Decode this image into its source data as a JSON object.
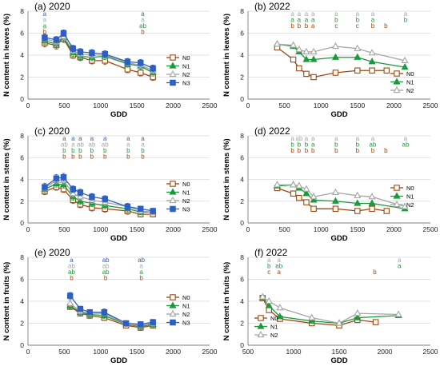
{
  "colors": {
    "N0": "#9e480e",
    "N1": "#1a9a3a",
    "N2": "#a5a5a5",
    "N3": "#2e5fc1"
  },
  "chart_data": [
    {
      "type": "line",
      "panel": "a",
      "title": "(a) 2020",
      "ylabel": "N content in leaves (%)",
      "xlabel": "GDD",
      "xlim": [
        0,
        2500
      ],
      "ylim": [
        0,
        8
      ],
      "xticks": [
        0,
        500,
        1000,
        1500,
        2000,
        2500
      ],
      "yticks": [
        0,
        2,
        4,
        6,
        8
      ],
      "legend": [
        "N0",
        "N1",
        "N2",
        "N3"
      ],
      "series": [
        {
          "name": "N0",
          "marker": "square",
          "x": [
            230,
            390,
            490,
            620,
            720,
            880,
            1060,
            1370,
            1550,
            1720
          ],
          "y": [
            5.1,
            4.9,
            5.5,
            4.0,
            3.8,
            3.5,
            3.5,
            2.7,
            2.4,
            2.0
          ],
          "err": [
            0.35,
            0.35,
            0.35,
            0.3,
            0.3,
            0.3,
            0.35,
            0.3,
            0.3,
            0.3
          ]
        },
        {
          "name": "N1",
          "marker": "triangle",
          "x": [
            230,
            390,
            490,
            620,
            720,
            880,
            1060,
            1370,
            1550,
            1720
          ],
          "y": [
            5.3,
            5.0,
            5.6,
            4.2,
            3.9,
            3.8,
            3.9,
            3.2,
            3.0,
            2.4
          ],
          "err": [
            0.3,
            0.3,
            0.3,
            0.3,
            0.3,
            0.3,
            0.3,
            0.3,
            0.3,
            0.3
          ]
        },
        {
          "name": "N2",
          "marker": "triangle-open",
          "x": [
            230,
            390,
            490,
            620,
            720,
            880,
            1060,
            1370,
            1550,
            1720
          ],
          "y": [
            5.5,
            5.2,
            5.7,
            4.4,
            4.1,
            4.0,
            4.0,
            3.3,
            3.1,
            2.6
          ],
          "err": [
            0.3,
            0.3,
            0.3,
            0.3,
            0.3,
            0.3,
            0.3,
            0.3,
            0.3,
            0.3
          ]
        },
        {
          "name": "N3",
          "marker": "square",
          "x": [
            230,
            390,
            490,
            620,
            720,
            880,
            1060,
            1370,
            1550,
            1720
          ],
          "y": [
            5.6,
            5.4,
            6.0,
            4.6,
            4.3,
            4.2,
            4.1,
            3.4,
            3.3,
            2.8
          ],
          "err": [
            0.3,
            0.3,
            0.3,
            0.3,
            0.3,
            0.3,
            0.3,
            0.3,
            0.3,
            0.3
          ]
        }
      ],
      "annotations": [
        {
          "x": 230,
          "letters": [
            "a",
            "a",
            "a",
            "b"
          ]
        },
        {
          "x": 1580,
          "letters": [
            "a",
            "a",
            "ab",
            "b"
          ]
        }
      ]
    },
    {
      "type": "line",
      "panel": "b",
      "title": "(b) 2022",
      "ylabel": "N content in leaves (%)",
      "xlabel": "GDD",
      "xlim": [
        0,
        2500
      ],
      "ylim": [
        0,
        8
      ],
      "xticks": [
        0,
        500,
        1000,
        1500,
        2000,
        2500
      ],
      "yticks": [
        0,
        2,
        4,
        6,
        8
      ],
      "legend": [
        "N0",
        "N1",
        "N2"
      ],
      "series": [
        {
          "name": "N0",
          "marker": "square",
          "x": [
            400,
            620,
            700,
            800,
            900,
            1200,
            1500,
            1700,
            1900
          ],
          "y": [
            4.7,
            3.6,
            2.8,
            2.3,
            2.0,
            2.4,
            2.6,
            2.6,
            2.6
          ]
        },
        {
          "name": "N1",
          "marker": "triangle",
          "x": [
            400,
            620,
            700,
            800,
            900,
            1200,
            1500,
            1700,
            2150
          ],
          "y": [
            5.0,
            4.8,
            4.3,
            3.6,
            3.6,
            3.8,
            3.8,
            3.4,
            2.9
          ]
        },
        {
          "name": "N2",
          "marker": "triangle-open",
          "x": [
            400,
            620,
            700,
            800,
            900,
            1200,
            1500,
            1700,
            2150
          ],
          "y": [
            5.0,
            4.9,
            4.5,
            4.3,
            4.3,
            4.8,
            4.6,
            4.2,
            3.5
          ]
        }
      ],
      "annotations": [
        {
          "x": 610,
          "letters": [
            "a",
            "a",
            "b"
          ]
        },
        {
          "x": 700,
          "letters": [
            "a",
            "a",
            "b"
          ]
        },
        {
          "x": 800,
          "letters": [
            "a",
            "a",
            "b"
          ]
        },
        {
          "x": 890,
          "letters": [
            "a",
            "a",
            "a"
          ]
        },
        {
          "x": 1210,
          "letters": [
            "a",
            "b",
            "c"
          ]
        },
        {
          "x": 1500,
          "letters": [
            "a",
            "b",
            "c"
          ]
        },
        {
          "x": 1710,
          "letters": [
            "a",
            "a",
            "b"
          ]
        },
        {
          "x": 1890,
          "letters": [
            "",
            "",
            "b"
          ]
        },
        {
          "x": 2160,
          "letters": [
            "a",
            "b",
            ""
          ]
        }
      ]
    },
    {
      "type": "line",
      "panel": "c",
      "title": "(c) 2020",
      "ylabel": "N content in stems (%)",
      "xlabel": "GDD",
      "xlim": [
        0,
        2500
      ],
      "ylim": [
        0,
        8
      ],
      "xticks": [
        0,
        500,
        1000,
        1500,
        2000,
        2500
      ],
      "yticks": [
        0,
        2,
        4,
        6,
        8
      ],
      "legend": [
        "N0",
        "N1",
        "N2",
        "N3"
      ],
      "series": [
        {
          "name": "N0",
          "marker": "square",
          "x": [
            230,
            390,
            490,
            620,
            720,
            880,
            1060,
            1370,
            1550,
            1720
          ],
          "y": [
            2.9,
            3.3,
            3.1,
            2.1,
            1.7,
            1.4,
            1.3,
            1.1,
            0.8,
            0.8
          ],
          "err": [
            0.3,
            0.3,
            0.3,
            0.3,
            0.3,
            0.3,
            0.3,
            0.3,
            0.25,
            0.25
          ]
        },
        {
          "name": "N1",
          "marker": "triangle",
          "x": [
            230,
            390,
            490,
            620,
            720,
            880,
            1060,
            1370,
            1550,
            1720
          ],
          "y": [
            3.1,
            3.6,
            3.5,
            2.4,
            2.0,
            1.8,
            1.6,
            1.3,
            1.0,
            1.0
          ],
          "err": [
            0.3,
            0.3,
            0.3,
            0.3,
            0.3,
            0.3,
            0.3,
            0.3,
            0.25,
            0.25
          ]
        },
        {
          "name": "N2",
          "marker": "triangle-open",
          "x": [
            230,
            390,
            490,
            620,
            720,
            880,
            1060,
            1370,
            1550,
            1720
          ],
          "y": [
            3.2,
            3.9,
            3.9,
            2.7,
            2.4,
            2.1,
            1.9,
            1.5,
            1.1,
            1.0
          ],
          "err": [
            0.3,
            0.3,
            0.3,
            0.3,
            0.3,
            0.3,
            0.3,
            0.3,
            0.25,
            0.25
          ]
        },
        {
          "name": "N3",
          "marker": "square",
          "x": [
            230,
            390,
            490,
            620,
            720,
            880,
            1060,
            1370,
            1550,
            1720
          ],
          "y": [
            3.3,
            4.1,
            4.2,
            3.1,
            2.8,
            2.4,
            2.2,
            1.5,
            1.3,
            1.1
          ],
          "err": [
            0.35,
            0.35,
            0.35,
            0.3,
            0.3,
            0.3,
            0.3,
            0.3,
            0.25,
            0.25
          ]
        }
      ],
      "annotations": [
        {
          "x": 500,
          "letters": [
            "a",
            "ab",
            "b",
            "b"
          ]
        },
        {
          "x": 620,
          "letters": [
            "a",
            "a",
            "b",
            "b"
          ]
        },
        {
          "x": 720,
          "letters": [
            "a",
            "ab",
            "b",
            "b"
          ]
        },
        {
          "x": 880,
          "letters": [
            "a",
            "ab",
            "b",
            "b"
          ]
        },
        {
          "x": 1060,
          "letters": [
            "a",
            "ab",
            "b",
            "b"
          ]
        },
        {
          "x": 1380,
          "letters": [
            "a",
            "a",
            "b",
            "b"
          ]
        },
        {
          "x": 1580,
          "letters": [
            "a",
            "a",
            "b",
            "b"
          ]
        }
      ]
    },
    {
      "type": "line",
      "panel": "d",
      "title": "(d) 2022",
      "ylabel": "N content in stems (%)",
      "xlabel": "GDD",
      "xlim": [
        0,
        2500
      ],
      "ylim": [
        0,
        8
      ],
      "xticks": [
        0,
        500,
        1000,
        1500,
        2000,
        2500
      ],
      "yticks": [
        0,
        2,
        4,
        6,
        8
      ],
      "legend": [
        "N0",
        "N1",
        "N2"
      ],
      "series": [
        {
          "name": "N0",
          "marker": "square",
          "x": [
            400,
            620,
            700,
            800,
            900,
            1200,
            1500,
            1700,
            1900
          ],
          "y": [
            3.2,
            2.7,
            2.3,
            1.9,
            1.3,
            1.3,
            1.1,
            1.3,
            1.1
          ]
        },
        {
          "name": "N1",
          "marker": "triangle",
          "x": [
            400,
            620,
            700,
            800,
            900,
            1200,
            1500,
            1700,
            2150
          ],
          "y": [
            3.4,
            3.5,
            3.2,
            2.7,
            2.1,
            2.0,
            1.8,
            1.8,
            1.3
          ]
        },
        {
          "name": "N2",
          "marker": "triangle-open",
          "x": [
            400,
            620,
            700,
            800,
            900,
            1200,
            1500,
            1700,
            2150
          ],
          "y": [
            3.5,
            3.5,
            3.4,
            3.1,
            2.4,
            2.8,
            2.5,
            2.4,
            1.5
          ]
        }
      ],
      "annotations": [
        {
          "x": 610,
          "letters": [
            "a",
            "b",
            "b"
          ]
        },
        {
          "x": 700,
          "letters": [
            "ab",
            "b",
            "b"
          ]
        },
        {
          "x": 800,
          "letters": [
            "a",
            "b",
            "b"
          ]
        },
        {
          "x": 890,
          "letters": [
            "a",
            "a",
            "b"
          ]
        },
        {
          "x": 1210,
          "letters": [
            "a",
            "b",
            "b"
          ]
        },
        {
          "x": 1500,
          "letters": [
            "a",
            "b",
            "b"
          ]
        },
        {
          "x": 1710,
          "letters": [
            "a",
            "ab",
            "b"
          ]
        },
        {
          "x": 1890,
          "letters": [
            "",
            "",
            "b"
          ]
        },
        {
          "x": 2160,
          "letters": [
            "a",
            "ab",
            ""
          ]
        }
      ]
    },
    {
      "type": "line",
      "panel": "e",
      "title": "(e) 2020",
      "ylabel": "N content in fruits (%)",
      "xlabel": "GDD",
      "xlim": [
        0,
        2500
      ],
      "ylim": [
        0,
        8
      ],
      "xticks": [
        0,
        500,
        1000,
        1500,
        2000,
        2500
      ],
      "yticks": [
        0,
        2,
        4,
        6,
        8
      ],
      "legend": [
        "N0",
        "N1",
        "N2",
        "N3"
      ],
      "series": [
        {
          "name": "N0",
          "marker": "square",
          "x": [
            580,
            720,
            850,
            1050,
            1350,
            1550,
            1720
          ],
          "y": [
            3.5,
            2.9,
            2.7,
            2.5,
            1.8,
            1.6,
            1.8
          ],
          "err": [
            0.25,
            0.25,
            0.25,
            0.25,
            0.2,
            0.25,
            0.25
          ]
        },
        {
          "name": "N1",
          "marker": "triangle",
          "x": [
            580,
            720,
            850,
            1050,
            1350,
            1550,
            1720
          ],
          "y": [
            3.6,
            3.0,
            2.8,
            2.7,
            1.9,
            1.7,
            1.9
          ],
          "err": [
            0.25,
            0.25,
            0.25,
            0.25,
            0.2,
            0.25,
            0.25
          ]
        },
        {
          "name": "N2",
          "marker": "triangle-open",
          "x": [
            580,
            720,
            850,
            1050,
            1350,
            1550,
            1720
          ],
          "y": [
            3.8,
            3.1,
            2.9,
            2.9,
            1.9,
            1.8,
            2.0
          ],
          "err": [
            0.25,
            0.25,
            0.25,
            0.25,
            0.2,
            0.25,
            0.25
          ]
        },
        {
          "name": "N3",
          "marker": "square",
          "x": [
            580,
            720,
            850,
            1050,
            1350,
            1550,
            1720
          ],
          "y": [
            4.5,
            3.3,
            3.0,
            3.0,
            2.0,
            1.9,
            2.1
          ],
          "err": [
            0.3,
            0.25,
            0.25,
            0.3,
            0.2,
            0.25,
            0.25
          ]
        }
      ],
      "annotations": [
        {
          "x": 600,
          "letters": [
            "a",
            "ab",
            "ab",
            "b"
          ]
        },
        {
          "x": 1070,
          "letters": [
            "ab",
            "ab",
            "ab",
            "b"
          ]
        },
        {
          "x": 1560,
          "letters": [
            "ab",
            "a",
            "a",
            "b"
          ]
        }
      ]
    },
    {
      "type": "line",
      "panel": "f",
      "title": "(f) 2022",
      "ylabel": "N content in fruits (%)",
      "xlabel": "GDD",
      "xlim": [
        500,
        2500
      ],
      "ylim": [
        0,
        8
      ],
      "xticks": [
        500,
        1000,
        1500,
        2000,
        2500
      ],
      "yticks": [
        0,
        2,
        4,
        6,
        8
      ],
      "legend": [
        "N0",
        "N1",
        "N2"
      ],
      "series": [
        {
          "name": "N0",
          "marker": "square",
          "x": [
            660,
            730,
            850,
            1200,
            1500,
            1700,
            1900
          ],
          "y": [
            4.3,
            3.2,
            2.4,
            2.0,
            1.8,
            2.3,
            2.1
          ]
        },
        {
          "name": "N1",
          "marker": "triangle",
          "x": [
            660,
            730,
            850,
            1200,
            1500,
            1700,
            2150
          ],
          "y": [
            4.3,
            3.6,
            2.6,
            2.2,
            2.0,
            2.5,
            2.7
          ]
        },
        {
          "name": "N2",
          "marker": "triangle-open",
          "x": [
            660,
            730,
            850,
            1200,
            1500,
            1700,
            2150
          ],
          "y": [
            4.4,
            4.0,
            3.4,
            2.5,
            2.0,
            2.9,
            2.8
          ]
        }
      ],
      "annotations": [
        {
          "x": 730,
          "letters": [
            "a",
            "b",
            "c"
          ]
        },
        {
          "x": 840,
          "letters": [
            "a",
            "ab",
            "a"
          ]
        },
        {
          "x": 1890,
          "letters": [
            "",
            "",
            "b"
          ]
        },
        {
          "x": 2160,
          "letters": [
            "a",
            "a",
            ""
          ]
        }
      ]
    }
  ]
}
